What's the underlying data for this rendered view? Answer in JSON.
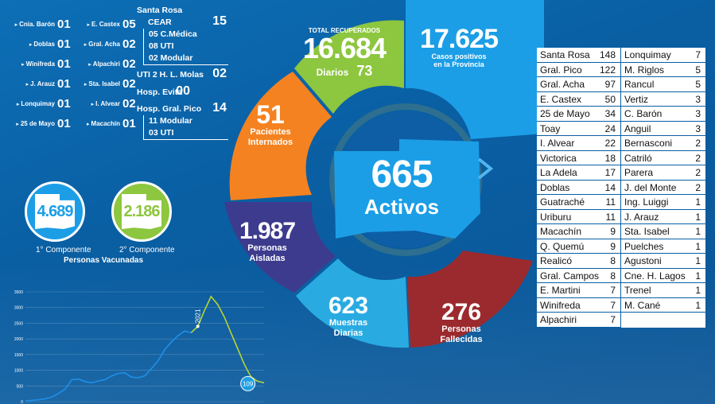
{
  "interior": [
    [
      {
        "name": "Cnia. Barón",
        "num": "01"
      },
      {
        "name": "E. Castex",
        "num": "05"
      }
    ],
    [
      {
        "name": "Doblas",
        "num": "01"
      },
      {
        "name": "Gral. Acha",
        "num": "02"
      }
    ],
    [
      {
        "name": "Winifreda",
        "num": "01"
      },
      {
        "name": "Alpachiri",
        "num": "02"
      }
    ],
    [
      {
        "name": "J. Arauz",
        "num": "01"
      },
      {
        "name": "Sta. Isabel",
        "num": "02"
      }
    ],
    [
      {
        "name": "Lonquimay",
        "num": "01"
      },
      {
        "name": "I. Alvear",
        "num": "02"
      }
    ],
    [
      {
        "name": "25 de Mayo",
        "num": "01"
      },
      {
        "name": "Macachín",
        "num": "01"
      }
    ]
  ],
  "hospitals": {
    "santa_rosa": "Santa Rosa",
    "cear": "CEAR",
    "cear_num": "15",
    "cear_medica": "05 C.Médica",
    "cear_uti": "08 UTI",
    "cear_modular": "02 Modular",
    "uti2": "UTI 2 H. L. Molas",
    "uti2_num": "02",
    "evita": "Hosp. Evita",
    "evita_num": "00",
    "pico": "Hosp. Gral. Pico",
    "pico_num": "14",
    "pico_modular": "11 Modular",
    "pico_uti": "03 UTI"
  },
  "vaccines": {
    "first_num": "4.689",
    "second_num": "2.186",
    "first_label": "1° Componente",
    "second_label": "2° Componente",
    "title": "Personas Vacunadas"
  },
  "chart_data": {
    "type": "line",
    "title": "",
    "xlabel": "",
    "ylabel": "",
    "ylim": [
      0,
      3500
    ],
    "y_ticks": [
      "0",
      "500",
      "1000",
      "1500",
      "2000",
      "2500",
      "3000",
      "3500"
    ],
    "annotations": [
      {
        "text": "2021",
        "series": 0,
        "index": 26
      },
      {
        "text": "109",
        "series": 1,
        "index": 35
      }
    ],
    "series": [
      {
        "name": "",
        "color": "#1e8fe8",
        "values": [
          20,
          40,
          60,
          90,
          150,
          260,
          400,
          700,
          720,
          640,
          600,
          660,
          700,
          820,
          900,
          920,
          780,
          760,
          820,
          1050,
          1300,
          1650,
          1900,
          2100,
          2250,
          2200,
          2400
        ]
      },
      {
        "name": "",
        "color": "#b7d433",
        "values": [
          null,
          null,
          null,
          null,
          null,
          null,
          null,
          null,
          null,
          null,
          null,
          null,
          null,
          null,
          null,
          null,
          null,
          null,
          null,
          null,
          null,
          null,
          null,
          null,
          null,
          2200,
          2400,
          2900,
          3350,
          3100,
          2700,
          2200,
          1700,
          1200,
          800,
          650,
          600
        ]
      }
    ]
  },
  "donut": {
    "recuperados_small": "TOTAL RECUPERADOS",
    "recuperados": "16.684",
    "diarios_label": "Diarios",
    "diarios_num": "73",
    "positivos": "17.625",
    "positivos_l1": "Casos positivos",
    "positivos_l2": "en la Provincia",
    "internados": "51",
    "internados_l1": "Pacientes",
    "internados_l2": "Internados",
    "aislados": "1.987",
    "aislados_l1": "Personas",
    "aislados_l2": "Aisladas",
    "muestras": "623",
    "muestras_l1": "Muestras",
    "muestras_l2": "Diarias",
    "fallecidos": "276",
    "fallecidos_l1": "Personas",
    "fallecidos_l2": "Fallecidas",
    "activos": "665",
    "activos_label": "Activos",
    "colors": {
      "green": "#8dc63f",
      "blue": "#1b9ee6",
      "orange": "#f58220",
      "purple": "#3d3b8e",
      "lightblue": "#29abe2",
      "red": "#9b2a2e"
    }
  },
  "departments": {
    "left": [
      {
        "name": "Santa Rosa",
        "num": "148"
      },
      {
        "name": "Gral. Pico",
        "num": "122"
      },
      {
        "name": "Gral. Acha",
        "num": "97"
      },
      {
        "name": "E. Castex",
        "num": "50"
      },
      {
        "name": "25 de Mayo",
        "num": "34"
      },
      {
        "name": "Toay",
        "num": "24"
      },
      {
        "name": "I. Alvear",
        "num": "22"
      },
      {
        "name": "Victorica",
        "num": "18"
      },
      {
        "name": "La Adela",
        "num": "17"
      },
      {
        "name": "Doblas",
        "num": "14"
      },
      {
        "name": "Guatraché",
        "num": "11"
      },
      {
        "name": "Uriburu",
        "num": "11"
      },
      {
        "name": "Macachín",
        "num": "9"
      },
      {
        "name": "Q. Quemú",
        "num": "9"
      },
      {
        "name": "Realicó",
        "num": "8"
      },
      {
        "name": "Gral. Campos",
        "num": "8"
      },
      {
        "name": "E. Martini",
        "num": "7"
      },
      {
        "name": "Winifreda",
        "num": "7"
      },
      {
        "name": "Alpachiri",
        "num": "7"
      }
    ],
    "right": [
      {
        "name": "Lonquimay",
        "num": "7"
      },
      {
        "name": "M. Riglos",
        "num": "5"
      },
      {
        "name": "Rancul",
        "num": "5"
      },
      {
        "name": "Vertiz",
        "num": "3"
      },
      {
        "name": "C. Barón",
        "num": "3"
      },
      {
        "name": "Anguil",
        "num": "3"
      },
      {
        "name": "Bernasconi",
        "num": "2"
      },
      {
        "name": "Catriló",
        "num": "2"
      },
      {
        "name": "Parera",
        "num": "2"
      },
      {
        "name": "J. del Monte",
        "num": "2"
      },
      {
        "name": "Ing. Luiggi",
        "num": "1"
      },
      {
        "name": "J. Arauz",
        "num": "1"
      },
      {
        "name": "Sta. Isabel",
        "num": "1"
      },
      {
        "name": "Puelches",
        "num": "1"
      },
      {
        "name": "Agustoni",
        "num": "1"
      },
      {
        "name": "Cne. H. Lagos",
        "num": "1"
      },
      {
        "name": "Trenel",
        "num": "1"
      },
      {
        "name": "M. Cané",
        "num": "1"
      }
    ]
  }
}
